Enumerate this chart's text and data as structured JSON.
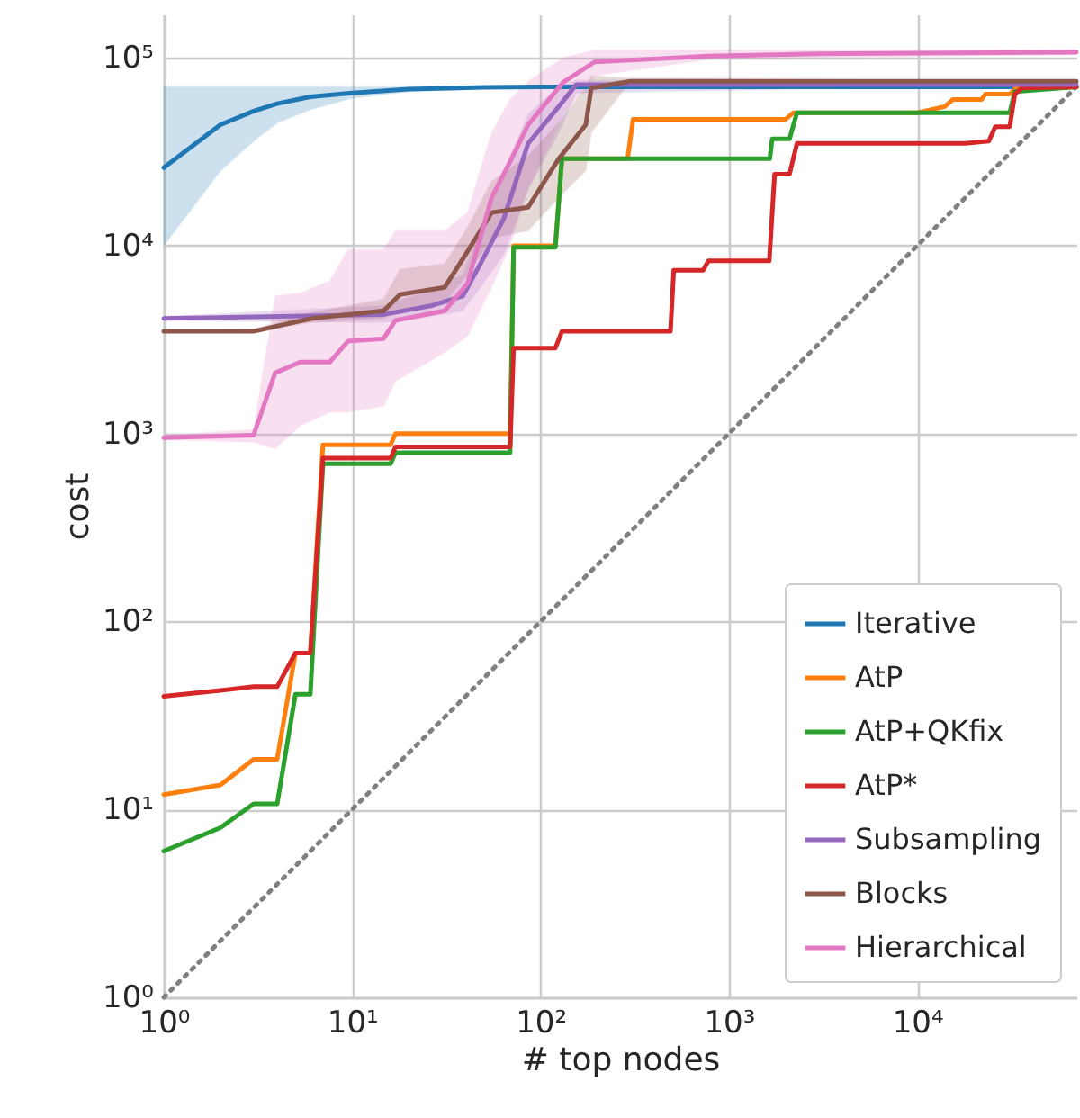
{
  "chart_data": {
    "type": "line",
    "xlabel": "# top nodes",
    "ylabel": "cost",
    "log": "xy",
    "grid": true,
    "legend": "bottom right",
    "xlim": [
      1,
      70000
    ],
    "ylim": [
      1,
      170000
    ],
    "xticks": [
      {
        "value": 1,
        "label": "10⁰"
      },
      {
        "value": 10,
        "label": "10¹"
      },
      {
        "value": 100,
        "label": "10²"
      },
      {
        "value": 1000,
        "label": "10³"
      },
      {
        "value": 10000,
        "label": "10⁴"
      }
    ],
    "yticks": [
      {
        "value": 1,
        "label": "10⁰"
      },
      {
        "value": 10,
        "label": "10¹"
      },
      {
        "value": 100,
        "label": "10²"
      },
      {
        "value": 1000,
        "label": "10³"
      },
      {
        "value": 10000,
        "label": "10⁴"
      },
      {
        "value": 100000,
        "label": "10⁵"
      }
    ],
    "series": [
      {
        "name": "Iterative",
        "color": "#1f77b4",
        "x": [
          1,
          2,
          3,
          4,
          6,
          10,
          20,
          50,
          100,
          1000,
          70000
        ],
        "values": [
          26000,
          44000,
          52000,
          57000,
          62000,
          65000,
          68000,
          69500,
          70000,
          70000,
          70000
        ],
        "lower": [
          10000,
          25000,
          36000,
          45000,
          53000,
          61000,
          66000,
          69000,
          70000,
          70000,
          70000
        ],
        "upper": [
          70000,
          70000,
          70000,
          70000,
          70000,
          70000,
          70000,
          70000,
          70000,
          70000,
          70000
        ]
      },
      {
        "name": "AtP",
        "color": "#ff7f0e",
        "x": [
          1,
          2,
          3,
          4,
          5,
          6,
          7,
          16,
          17,
          69,
          72,
          120,
          130,
          290,
          310,
          2000,
          2200,
          10000,
          14000,
          15500,
          22000,
          23000,
          31000,
          34000,
          70000
        ],
        "values": [
          12,
          13.5,
          18.5,
          18.5,
          68,
          68,
          870,
          870,
          1000,
          1000,
          10000,
          10000,
          29000,
          29000,
          47000,
          47000,
          51000,
          51000,
          55000,
          60000,
          60000,
          64000,
          64000,
          70000,
          70000
        ]
      },
      {
        "name": "AtP+QKfix",
        "color": "#2ca02c",
        "x": [
          1,
          2,
          3,
          4,
          5,
          6,
          7,
          16,
          17,
          69,
          72,
          120,
          130,
          1650,
          1700,
          2100,
          2300,
          31000,
          33000,
          70000
        ],
        "values": [
          6,
          8,
          10.7,
          10.7,
          41,
          41,
          690,
          690,
          790,
          790,
          9800,
          9800,
          29000,
          29000,
          37000,
          37000,
          51000,
          51000,
          66000,
          70000
        ]
      },
      {
        "name": "AtP*",
        "color": "#d62728",
        "x": [
          1,
          2,
          3,
          4,
          5,
          6,
          7,
          16,
          17,
          69,
          72,
          120,
          130,
          490,
          510,
          730,
          780,
          1640,
          1750,
          2100,
          2300,
          18000,
          24000,
          26000,
          31000,
          33000,
          36000,
          70000
        ],
        "values": [
          40,
          43,
          45,
          45,
          68,
          68,
          740,
          740,
          850,
          850,
          2850,
          2850,
          3500,
          3500,
          7400,
          7400,
          8300,
          8300,
          24000,
          24000,
          35000,
          35000,
          36000,
          43000,
          43000,
          64000,
          69000,
          70000
        ]
      },
      {
        "name": "Subsampling",
        "color": "#9467bd",
        "x": [
          1,
          14.7,
          26.6,
          38.7,
          48,
          64,
          86,
          125,
          155,
          70000
        ],
        "values": [
          4100,
          4300,
          4800,
          5400,
          8000,
          14000,
          35000,
          55000,
          72000,
          72000
        ],
        "lower": [
          4000,
          3900,
          4200,
          4500,
          6000,
          9000,
          20000,
          40000,
          65000,
          72000
        ],
        "upper": [
          4200,
          4800,
          5800,
          7000,
          12000,
          25000,
          50000,
          70000,
          76000,
          72000
        ]
      },
      {
        "name": "Blocks",
        "color": "#8c564b",
        "x": [
          1,
          3,
          6.1,
          14.7,
          18,
          31,
          41,
          55,
          86,
          125,
          174,
          186,
          300,
          70000
        ],
        "values": [
          3500,
          3500,
          4100,
          4500,
          5500,
          6000,
          9300,
          15000,
          16000,
          29000,
          44000,
          69000,
          75000,
          75000
        ],
        "lower": [
          3500,
          3500,
          3900,
          4100,
          4500,
          5000,
          7000,
          11000,
          12000,
          18000,
          25000,
          40000,
          75000,
          75000
        ],
        "upper": [
          3500,
          3600,
          4400,
          5200,
          7500,
          8000,
          12500,
          22000,
          30000,
          45000,
          70000,
          80000,
          78000,
          75000
        ]
      },
      {
        "name": "Hierarchical",
        "color": "#e377c2",
        "x": [
          1,
          3,
          3.9,
          5.3,
          7.6,
          9.5,
          14.7,
          17,
          31,
          41,
          55,
          69,
          86,
          132,
          194,
          780,
          3000,
          70000
        ],
        "values": [
          950,
          980,
          2100,
          2400,
          2400,
          3100,
          3200,
          4000,
          4500,
          6300,
          18000,
          28000,
          44000,
          74000,
          95000,
          102000,
          105000,
          107000
        ],
        "lower": [
          930,
          900,
          830,
          1100,
          1300,
          1300,
          1400,
          1900,
          2700,
          3300,
          6000,
          10000,
          20000,
          50000,
          80000,
          98000,
          100000,
          104000
        ],
        "upper": [
          980,
          1050,
          5400,
          5600,
          6500,
          9500,
          9500,
          12000,
          12000,
          15000,
          40000,
          60000,
          75000,
          100000,
          110000,
          110000,
          110000,
          110000
        ]
      },
      {
        "color": "#808080",
        "line_style": "dotted",
        "x": [
          1,
          70000
        ],
        "values": [
          1,
          70000
        ]
      }
    ]
  }
}
